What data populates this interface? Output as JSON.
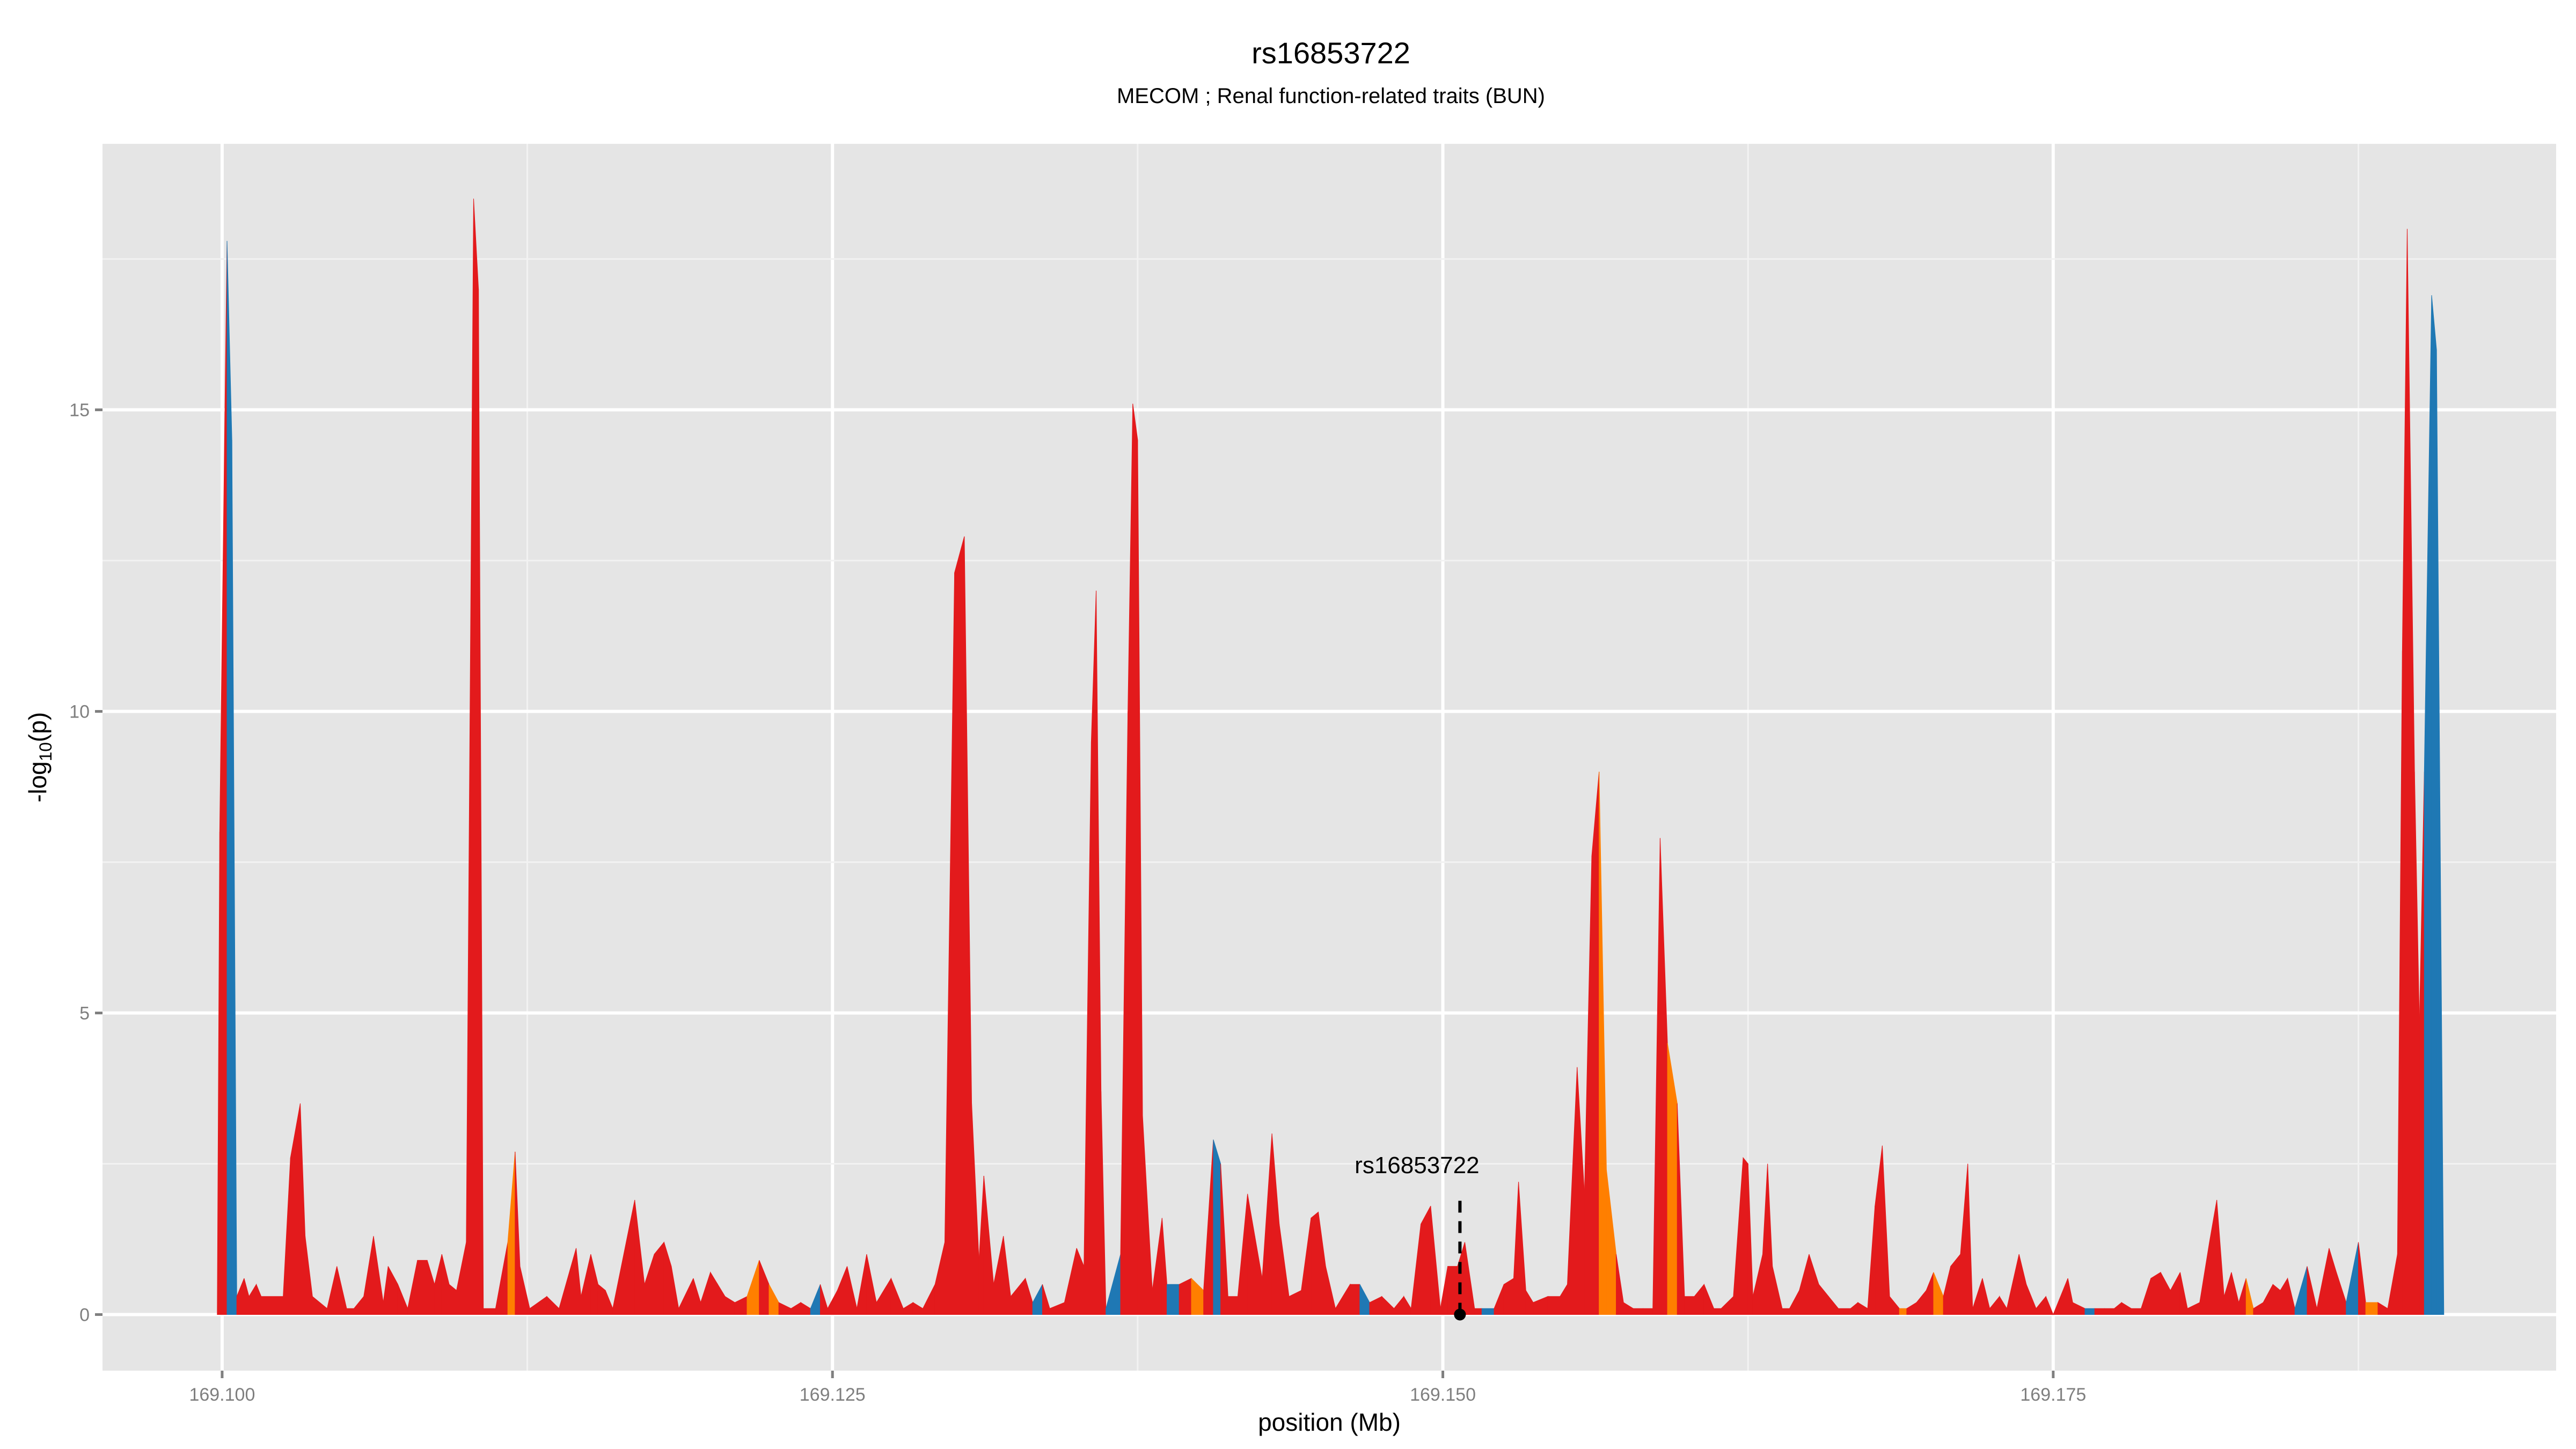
{
  "chart_data": {
    "type": "area",
    "title": "rs16853722",
    "subtitle": "MECOM ; Renal function-related traits (BUN)",
    "xlabel": "position (Mb)",
    "ylabel_main": "-log",
    "ylabel_sub": "10",
    "ylabel_tail": "(p)",
    "xlim": [
      169.0951,
      169.1956
    ],
    "ylim": [
      -0.93,
      19.41
    ],
    "x_ticks": [
      169.1,
      169.125,
      169.15,
      169.175
    ],
    "x_tick_labels": [
      "169.100",
      "169.125",
      "169.150",
      "169.175"
    ],
    "y_ticks": [
      0,
      5,
      10,
      15
    ],
    "y_tick_labels": [
      "0",
      "5",
      "10",
      "15"
    ],
    "grid": true,
    "panel_background": "#E5E5E5",
    "fill_colors": {
      "r": "#E31A1C",
      "b": "#1F78B4",
      "o": "#FF7F00"
    },
    "highlight": {
      "label": "rs16853722",
      "x": 169.1507,
      "y": 0,
      "line_top": 1.9
    },
    "points": [
      [
        169.0998,
        0,
        "r"
      ],
      [
        169.0999,
        8,
        "r"
      ],
      [
        169.1002,
        17.8,
        "r"
      ],
      [
        169.1004,
        14.5,
        "b"
      ],
      [
        169.1006,
        0.3,
        "b"
      ],
      [
        169.1009,
        0.6,
        "r"
      ],
      [
        169.1011,
        0.3,
        "r"
      ],
      [
        169.1014,
        0.5,
        "r"
      ],
      [
        169.1016,
        0.3,
        "r"
      ],
      [
        169.1025,
        0.3,
        "r"
      ],
      [
        169.1028,
        2.6,
        "r"
      ],
      [
        169.1032,
        3.5,
        "r"
      ],
      [
        169.1034,
        1.3,
        "r"
      ],
      [
        169.1037,
        0.3,
        "r"
      ],
      [
        169.1043,
        0.1,
        "r"
      ],
      [
        169.1047,
        0.8,
        "r"
      ],
      [
        169.1051,
        0.1,
        "r"
      ],
      [
        169.1054,
        0.1,
        "r"
      ],
      [
        169.1058,
        0.3,
        "r"
      ],
      [
        169.1062,
        1.3,
        "r"
      ],
      [
        169.1066,
        0.2,
        "r"
      ],
      [
        169.1068,
        0.8,
        "r"
      ],
      [
        169.1072,
        0.5,
        "r"
      ],
      [
        169.1076,
        0.1,
        "r"
      ],
      [
        169.108,
        0.9,
        "r"
      ],
      [
        169.1084,
        0.9,
        "r"
      ],
      [
        169.1087,
        0.5,
        "r"
      ],
      [
        169.109,
        1.0,
        "r"
      ],
      [
        169.1093,
        0.5,
        "r"
      ],
      [
        169.1096,
        0.4,
        "r"
      ],
      [
        169.11,
        1.2,
        "r"
      ],
      [
        169.1103,
        18.5,
        "r"
      ],
      [
        169.1105,
        17,
        "r"
      ],
      [
        169.1107,
        0.1,
        "r"
      ],
      [
        169.1112,
        0.1,
        "r"
      ],
      [
        169.1117,
        1.2,
        "r"
      ],
      [
        169.112,
        2.7,
        "o"
      ],
      [
        169.1122,
        0.8,
        "r"
      ],
      [
        169.1126,
        0.1,
        "r"
      ],
      [
        169.1133,
        0.3,
        "r"
      ],
      [
        169.1138,
        0.1,
        "r"
      ],
      [
        169.1145,
        1.1,
        "r"
      ],
      [
        169.1147,
        0.3,
        "r"
      ],
      [
        169.1151,
        1.0,
        "r"
      ],
      [
        169.1154,
        0.5,
        "r"
      ],
      [
        169.1157,
        0.4,
        "r"
      ],
      [
        169.116,
        0.1,
        "r"
      ],
      [
        169.1165,
        1.1,
        "r"
      ],
      [
        169.1169,
        1.9,
        "r"
      ],
      [
        169.1173,
        0.5,
        "r"
      ],
      [
        169.1177,
        1.0,
        "r"
      ],
      [
        169.1181,
        1.2,
        "r"
      ],
      [
        169.1184,
        0.8,
        "r"
      ],
      [
        169.1187,
        0.1,
        "r"
      ],
      [
        169.1193,
        0.6,
        "r"
      ],
      [
        169.1196,
        0.2,
        "r"
      ],
      [
        169.12,
        0.7,
        "r"
      ],
      [
        169.1203,
        0.5,
        "r"
      ],
      [
        169.1206,
        0.3,
        "r"
      ],
      [
        169.121,
        0.2,
        "r"
      ],
      [
        169.1215,
        0.3,
        "r"
      ],
      [
        169.122,
        0.9,
        "o"
      ],
      [
        169.1224,
        0.5,
        "r"
      ],
      [
        169.1228,
        0.2,
        "o"
      ],
      [
        169.1233,
        0.1,
        "r"
      ],
      [
        169.1237,
        0.2,
        "r"
      ],
      [
        169.1241,
        0.1,
        "r"
      ],
      [
        169.1245,
        0.5,
        "b"
      ],
      [
        169.1248,
        0.1,
        "r"
      ],
      [
        169.1252,
        0.4,
        "r"
      ],
      [
        169.1256,
        0.8,
        "r"
      ],
      [
        169.126,
        0.1,
        "r"
      ],
      [
        169.1264,
        1.0,
        "r"
      ],
      [
        169.1268,
        0.2,
        "r"
      ],
      [
        169.1274,
        0.6,
        "r"
      ],
      [
        169.1279,
        0.1,
        "r"
      ],
      [
        169.1283,
        0.2,
        "r"
      ],
      [
        169.1287,
        0.1,
        "r"
      ],
      [
        169.1292,
        0.5,
        "r"
      ],
      [
        169.1296,
        1.2,
        "r"
      ],
      [
        169.13,
        12.3,
        "r"
      ],
      [
        169.1304,
        12.9,
        "r"
      ],
      [
        169.1307,
        3.5,
        "r"
      ],
      [
        169.131,
        0.9,
        "r"
      ],
      [
        169.1312,
        2.3,
        "r"
      ],
      [
        169.1316,
        0.5,
        "r"
      ],
      [
        169.132,
        1.3,
        "r"
      ],
      [
        169.1323,
        0.3,
        "r"
      ],
      [
        169.1329,
        0.6,
        "r"
      ],
      [
        169.1332,
        0.2,
        "r"
      ],
      [
        169.1336,
        0.5,
        "b"
      ],
      [
        169.1339,
        0.1,
        "r"
      ],
      [
        169.1345,
        0.2,
        "r"
      ],
      [
        169.135,
        1.1,
        "r"
      ],
      [
        169.1353,
        0.8,
        "r"
      ],
      [
        169.1356,
        9.5,
        "r"
      ],
      [
        169.1358,
        12,
        "r"
      ],
      [
        169.136,
        3.7,
        "r"
      ],
      [
        169.1362,
        0.1,
        "r"
      ],
      [
        169.1368,
        1.0,
        "b"
      ],
      [
        169.1371,
        10,
        "r"
      ],
      [
        169.1373,
        15.1,
        "r"
      ],
      [
        169.1375,
        14.5,
        "r"
      ],
      [
        169.1377,
        3.3,
        "r"
      ],
      [
        169.1381,
        0.4,
        "r"
      ],
      [
        169.1385,
        1.6,
        "r"
      ],
      [
        169.1387,
        0.5,
        "r"
      ],
      [
        169.1392,
        0.5,
        "b"
      ],
      [
        169.1397,
        0.6,
        "r"
      ],
      [
        169.1402,
        0.4,
        "o"
      ],
      [
        169.1406,
        2.9,
        "r"
      ],
      [
        169.1409,
        2.5,
        "b"
      ],
      [
        169.1412,
        0.3,
        "r"
      ],
      [
        169.1416,
        0.3,
        "r"
      ],
      [
        169.142,
        2.0,
        "r"
      ],
      [
        169.1423,
        1.3,
        "r"
      ],
      [
        169.1426,
        0.6,
        "r"
      ],
      [
        169.143,
        3.0,
        "r"
      ],
      [
        169.1433,
        1.5,
        "r"
      ],
      [
        169.1437,
        0.3,
        "r"
      ],
      [
        169.1442,
        0.4,
        "r"
      ],
      [
        169.1446,
        1.6,
        "r"
      ],
      [
        169.1449,
        1.7,
        "r"
      ],
      [
        169.1452,
        0.8,
        "r"
      ],
      [
        169.1456,
        0.1,
        "r"
      ],
      [
        169.1462,
        0.5,
        "r"
      ],
      [
        169.1466,
        0.5,
        "r"
      ],
      [
        169.147,
        0.2,
        "b"
      ],
      [
        169.1475,
        0.3,
        "r"
      ],
      [
        169.148,
        0.1,
        "r"
      ],
      [
        169.1484,
        0.3,
        "r"
      ],
      [
        169.1487,
        0.1,
        "r"
      ],
      [
        169.1491,
        1.5,
        "r"
      ],
      [
        169.1495,
        1.8,
        "r"
      ],
      [
        169.1499,
        0.1,
        "r"
      ],
      [
        169.1502,
        0.8,
        "r"
      ],
      [
        169.1506,
        0.8,
        "r"
      ],
      [
        169.1509,
        1.2,
        "r"
      ],
      [
        169.1513,
        0.1,
        "r"
      ],
      [
        169.1516,
        0.1,
        "r"
      ],
      [
        169.1521,
        0.1,
        "b"
      ],
      [
        169.1525,
        0.5,
        "r"
      ],
      [
        169.1529,
        0.6,
        "r"
      ],
      [
        169.1531,
        2.2,
        "r"
      ],
      [
        169.1534,
        0.4,
        "r"
      ],
      [
        169.1537,
        0.2,
        "r"
      ],
      [
        169.1543,
        0.3,
        "r"
      ],
      [
        169.1548,
        0.3,
        "r"
      ],
      [
        169.1551,
        0.5,
        "r"
      ],
      [
        169.1555,
        4.1,
        "r"
      ],
      [
        169.1558,
        2.0,
        "r"
      ],
      [
        169.1561,
        7.6,
        "r"
      ],
      [
        169.1564,
        9.0,
        "r"
      ],
      [
        169.1567,
        2.4,
        "o"
      ],
      [
        169.1571,
        1.0,
        "o"
      ],
      [
        169.1574,
        0.2,
        "r"
      ],
      [
        169.1578,
        0.1,
        "r"
      ],
      [
        169.1582,
        0.1,
        "r"
      ],
      [
        169.1586,
        0.1,
        "r"
      ],
      [
        169.1589,
        7.9,
        "r"
      ],
      [
        169.1592,
        4.5,
        "r"
      ],
      [
        169.1596,
        3.5,
        "o"
      ],
      [
        169.1599,
        0.3,
        "r"
      ],
      [
        169.1603,
        0.3,
        "r"
      ],
      [
        169.1607,
        0.5,
        "r"
      ],
      [
        169.1611,
        0.1,
        "r"
      ],
      [
        169.1614,
        0.1,
        "r"
      ],
      [
        169.1619,
        0.3,
        "r"
      ],
      [
        169.1623,
        2.6,
        "r"
      ],
      [
        169.1625,
        2.5,
        "r"
      ],
      [
        169.1627,
        0.3,
        "r"
      ],
      [
        169.1631,
        1.0,
        "r"
      ],
      [
        169.1633,
        2.5,
        "r"
      ],
      [
        169.1635,
        0.8,
        "r"
      ],
      [
        169.1639,
        0.1,
        "r"
      ],
      [
        169.1642,
        0.1,
        "r"
      ],
      [
        169.1646,
        0.4,
        "r"
      ],
      [
        169.165,
        1.0,
        "r"
      ],
      [
        169.1654,
        0.5,
        "r"
      ],
      [
        169.1658,
        0.3,
        "r"
      ],
      [
        169.1662,
        0.1,
        "r"
      ],
      [
        169.1667,
        0.1,
        "r"
      ],
      [
        169.167,
        0.2,
        "r"
      ],
      [
        169.1674,
        0.1,
        "r"
      ],
      [
        169.1677,
        1.8,
        "r"
      ],
      [
        169.168,
        2.8,
        "r"
      ],
      [
        169.1683,
        0.3,
        "r"
      ],
      [
        169.1687,
        0.1,
        "r"
      ],
      [
        169.169,
        0.1,
        "o"
      ],
      [
        169.1694,
        0.2,
        "r"
      ],
      [
        169.1698,
        0.4,
        "r"
      ],
      [
        169.1701,
        0.7,
        "r"
      ],
      [
        169.1705,
        0.3,
        "o"
      ],
      [
        169.1708,
        0.8,
        "r"
      ],
      [
        169.1712,
        1.0,
        "r"
      ],
      [
        169.1715,
        2.5,
        "r"
      ],
      [
        169.1717,
        0.1,
        "r"
      ],
      [
        169.1721,
        0.6,
        "r"
      ],
      [
        169.1724,
        0.1,
        "r"
      ],
      [
        169.1728,
        0.3,
        "r"
      ],
      [
        169.1731,
        0.1,
        "r"
      ],
      [
        169.1736,
        1.0,
        "r"
      ],
      [
        169.1739,
        0.5,
        "r"
      ],
      [
        169.1743,
        0.1,
        "r"
      ],
      [
        169.1747,
        0.3,
        "r"
      ],
      [
        169.175,
        0.0,
        "r"
      ],
      [
        169.1756,
        0.6,
        "r"
      ],
      [
        169.1758,
        0.2,
        "r"
      ],
      [
        169.1763,
        0.1,
        "r"
      ],
      [
        169.1767,
        0.1,
        "b"
      ],
      [
        169.1771,
        0.1,
        "r"
      ],
      [
        169.1775,
        0.1,
        "r"
      ],
      [
        169.1778,
        0.2,
        "r"
      ],
      [
        169.1782,
        0.1,
        "r"
      ],
      [
        169.1786,
        0.1,
        "r"
      ],
      [
        169.179,
        0.6,
        "r"
      ],
      [
        169.1794,
        0.7,
        "r"
      ],
      [
        169.1798,
        0.4,
        "r"
      ],
      [
        169.1802,
        0.7,
        "r"
      ],
      [
        169.1805,
        0.1,
        "r"
      ],
      [
        169.181,
        0.2,
        "r"
      ],
      [
        169.1814,
        1.2,
        "r"
      ],
      [
        169.1817,
        1.9,
        "r"
      ],
      [
        169.182,
        0.3,
        "r"
      ],
      [
        169.1823,
        0.7,
        "r"
      ],
      [
        169.1826,
        0.2,
        "r"
      ],
      [
        169.1829,
        0.6,
        "r"
      ],
      [
        169.1832,
        0.1,
        "o"
      ],
      [
        169.1836,
        0.2,
        "r"
      ],
      [
        169.184,
        0.5,
        "r"
      ],
      [
        169.1843,
        0.4,
        "r"
      ],
      [
        169.1846,
        0.6,
        "r"
      ],
      [
        169.1849,
        0.1,
        "r"
      ],
      [
        169.1854,
        0.8,
        "b"
      ],
      [
        169.1858,
        0.1,
        "r"
      ],
      [
        169.1863,
        1.1,
        "r"
      ],
      [
        169.1866,
        0.7,
        "r"
      ],
      [
        169.187,
        0.2,
        "r"
      ],
      [
        169.1875,
        1.2,
        "b"
      ],
      [
        169.1878,
        0.2,
        "r"
      ],
      [
        169.1883,
        0.2,
        "o"
      ],
      [
        169.1887,
        0.1,
        "r"
      ],
      [
        169.1891,
        1.0,
        "r"
      ],
      [
        169.1893,
        11,
        "r"
      ],
      [
        169.1895,
        18,
        "r"
      ],
      [
        169.1898,
        9,
        "r"
      ],
      [
        169.19,
        4.8,
        "r"
      ],
      [
        169.1902,
        9,
        "r"
      ],
      [
        169.1905,
        16.9,
        "b"
      ],
      [
        169.1907,
        16,
        "b"
      ],
      [
        169.191,
        0,
        "b"
      ]
    ]
  }
}
